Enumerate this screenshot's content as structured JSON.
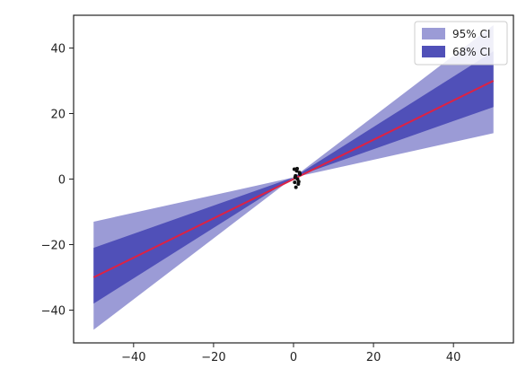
{
  "chart_data": {
    "type": "line",
    "title": "",
    "xlabel": "",
    "ylabel": "",
    "xlim": [
      -55,
      55
    ],
    "ylim": [
      -50,
      50
    ],
    "x_ticks": [
      -40,
      -20,
      0,
      20,
      40
    ],
    "y_ticks": [
      -40,
      -20,
      0,
      20,
      40
    ],
    "x_tick_labels": [
      "−40",
      "−20",
      "0",
      "20",
      "40"
    ],
    "y_tick_labels": [
      "−40",
      "−20",
      "0",
      "20",
      "40"
    ],
    "grid": false,
    "legend_position": "top-right",
    "series": [
      {
        "name": "95% CI",
        "kind": "band",
        "color": "#9b9bd6",
        "x": [
          -50,
          0,
          50
        ],
        "lower": [
          -46,
          0.5,
          14
        ],
        "upper": [
          -13,
          0.5,
          47
        ]
      },
      {
        "name": "68% CI",
        "kind": "band",
        "color": "#5050b8",
        "x": [
          -50,
          0,
          50
        ],
        "lower": [
          -38,
          0.5,
          22
        ],
        "upper": [
          -21,
          0.5,
          39
        ]
      },
      {
        "kind": "line",
        "color": "#dd2244",
        "x": [
          -50,
          50
        ],
        "y": [
          -30,
          30
        ]
      },
      {
        "kind": "scatter",
        "color": "#111111",
        "x": [
          0.2,
          0.8,
          1.5,
          0.5,
          1.0,
          0.3,
          1.2,
          0.6,
          1.6,
          0.9,
          0.4,
          1.3
        ],
        "y": [
          3.0,
          2.5,
          2.0,
          1.0,
          0.0,
          -1.0,
          -1.5,
          -2.5,
          1.5,
          3.2,
          0.5,
          -0.8
        ]
      }
    ]
  }
}
